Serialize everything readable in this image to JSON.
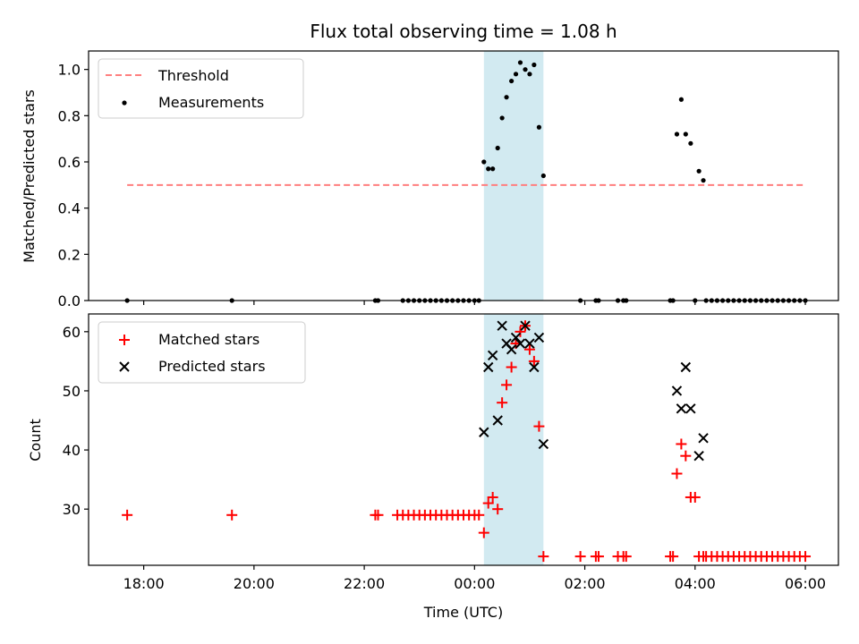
{
  "chart_data": [
    {
      "type": "scatter",
      "title": "Flux total observing time = 1.08 h",
      "xlabel": "",
      "ylabel": "Matched/Predicted stars",
      "ylim": [
        0,
        1.08
      ],
      "yticks": [
        0.0,
        0.2,
        0.4,
        0.6,
        0.8,
        1.0
      ],
      "ytick_labels": [
        "0.0",
        "0.2",
        "0.4",
        "0.6",
        "0.8",
        "1.0"
      ],
      "xlim_hours": [
        -7.0,
        6.6
      ],
      "legend_position": "upper-left",
      "shaded_interval_hours": [
        0.17,
        1.25
      ],
      "threshold": {
        "name": "Threshold",
        "value": 0.5,
        "x_start_hours": -6.3,
        "x_end_hours": 6.0,
        "color": "#ff7f7f"
      },
      "series": [
        {
          "name": "Measurements",
          "color": "#000000",
          "marker": "dot",
          "points": [
            [
              -6.3,
              0
            ],
            [
              -4.4,
              0
            ],
            [
              -1.8,
              0
            ],
            [
              -1.75,
              0
            ],
            [
              -1.3,
              0
            ],
            [
              -1.2,
              0
            ],
            [
              -1.1,
              0
            ],
            [
              -1.0,
              0
            ],
            [
              -0.9,
              0
            ],
            [
              -0.8,
              0
            ],
            [
              -0.7,
              0
            ],
            [
              -0.6,
              0
            ],
            [
              -0.5,
              0
            ],
            [
              -0.4,
              0
            ],
            [
              -0.3,
              0
            ],
            [
              -0.2,
              0
            ],
            [
              -0.1,
              0
            ],
            [
              0.0,
              0
            ],
            [
              0.08,
              0
            ],
            [
              0.17,
              0.6
            ],
            [
              0.25,
              0.57
            ],
            [
              0.33,
              0.57
            ],
            [
              0.42,
              0.66
            ],
            [
              0.5,
              0.79
            ],
            [
              0.58,
              0.88
            ],
            [
              0.67,
              0.95
            ],
            [
              0.75,
              0.98
            ],
            [
              0.83,
              1.03
            ],
            [
              0.92,
              1.0
            ],
            [
              1.0,
              0.98
            ],
            [
              1.08,
              1.02
            ],
            [
              1.17,
              0.75
            ],
            [
              1.25,
              0.54
            ],
            [
              1.92,
              0
            ],
            [
              2.2,
              0
            ],
            [
              2.25,
              0
            ],
            [
              2.6,
              0
            ],
            [
              2.7,
              0
            ],
            [
              2.75,
              0
            ],
            [
              3.55,
              0
            ],
            [
              3.6,
              0
            ],
            [
              3.67,
              0.72
            ],
            [
              3.75,
              0.87
            ],
            [
              3.83,
              0.72
            ],
            [
              3.92,
              0.68
            ],
            [
              4.0,
              0
            ],
            [
              4.07,
              0.56
            ],
            [
              4.15,
              0.52
            ],
            [
              4.2,
              0
            ],
            [
              4.3,
              0
            ],
            [
              4.4,
              0
            ],
            [
              4.5,
              0
            ],
            [
              4.6,
              0
            ],
            [
              4.7,
              0
            ],
            [
              4.8,
              0
            ],
            [
              4.9,
              0
            ],
            [
              5.0,
              0
            ],
            [
              5.1,
              0
            ],
            [
              5.2,
              0
            ],
            [
              5.3,
              0
            ],
            [
              5.4,
              0
            ],
            [
              5.5,
              0
            ],
            [
              5.6,
              0
            ],
            [
              5.7,
              0
            ],
            [
              5.8,
              0
            ],
            [
              5.9,
              0
            ],
            [
              6.0,
              0
            ]
          ]
        }
      ]
    },
    {
      "type": "scatter",
      "title": "",
      "xlabel": "Time (UTC)",
      "ylabel": "Count",
      "ylim": [
        20.5,
        63
      ],
      "yticks": [
        30,
        40,
        50,
        60
      ],
      "ytick_labels": [
        "30",
        "40",
        "50",
        "60"
      ],
      "xlim_hours": [
        -7.0,
        6.6
      ],
      "xticks_hours": [
        -6,
        -4,
        -2,
        0,
        2,
        4,
        6
      ],
      "xtick_labels": [
        "18:00",
        "20:00",
        "22:00",
        "00:00",
        "02:00",
        "04:00",
        "06:00"
      ],
      "legend_position": "upper-left",
      "shaded_interval_hours": [
        0.17,
        1.25
      ],
      "series": [
        {
          "name": "Matched stars",
          "color": "#ff0000",
          "marker": "plus",
          "points": [
            [
              -6.3,
              29
            ],
            [
              -4.4,
              29
            ],
            [
              -1.8,
              29
            ],
            [
              -1.75,
              29
            ],
            [
              -1.4,
              29
            ],
            [
              -1.3,
              29
            ],
            [
              -1.2,
              29
            ],
            [
              -1.1,
              29
            ],
            [
              -1.0,
              29
            ],
            [
              -0.9,
              29
            ],
            [
              -0.8,
              29
            ],
            [
              -0.7,
              29
            ],
            [
              -0.6,
              29
            ],
            [
              -0.5,
              29
            ],
            [
              -0.4,
              29
            ],
            [
              -0.3,
              29
            ],
            [
              -0.2,
              29
            ],
            [
              -0.1,
              29
            ],
            [
              0.0,
              29
            ],
            [
              0.08,
              29
            ],
            [
              0.17,
              26
            ],
            [
              0.25,
              31
            ],
            [
              0.33,
              32
            ],
            [
              0.42,
              30
            ],
            [
              0.5,
              48
            ],
            [
              0.58,
              51
            ],
            [
              0.67,
              54
            ],
            [
              0.75,
              58
            ],
            [
              0.83,
              60
            ],
            [
              0.92,
              61
            ],
            [
              1.0,
              57
            ],
            [
              1.08,
              55
            ],
            [
              1.17,
              44
            ],
            [
              1.25,
              22
            ],
            [
              1.92,
              22
            ],
            [
              2.2,
              22
            ],
            [
              2.25,
              22
            ],
            [
              2.6,
              22
            ],
            [
              2.7,
              22
            ],
            [
              2.75,
              22
            ],
            [
              3.55,
              22
            ],
            [
              3.6,
              22
            ],
            [
              3.67,
              36
            ],
            [
              3.75,
              41
            ],
            [
              3.83,
              39
            ],
            [
              3.92,
              32
            ],
            [
              4.0,
              32
            ],
            [
              4.07,
              22
            ],
            [
              4.15,
              22
            ],
            [
              4.2,
              22
            ],
            [
              4.3,
              22
            ],
            [
              4.4,
              22
            ],
            [
              4.5,
              22
            ],
            [
              4.6,
              22
            ],
            [
              4.7,
              22
            ],
            [
              4.8,
              22
            ],
            [
              4.9,
              22
            ],
            [
              5.0,
              22
            ],
            [
              5.1,
              22
            ],
            [
              5.2,
              22
            ],
            [
              5.3,
              22
            ],
            [
              5.4,
              22
            ],
            [
              5.5,
              22
            ],
            [
              5.6,
              22
            ],
            [
              5.7,
              22
            ],
            [
              5.8,
              22
            ],
            [
              5.9,
              22
            ],
            [
              6.0,
              22
            ]
          ]
        },
        {
          "name": "Predicted stars",
          "color": "#000000",
          "marker": "x",
          "points": [
            [
              0.17,
              43
            ],
            [
              0.25,
              54
            ],
            [
              0.33,
              56
            ],
            [
              0.42,
              45
            ],
            [
              0.5,
              61
            ],
            [
              0.58,
              58
            ],
            [
              0.67,
              57
            ],
            [
              0.75,
              59
            ],
            [
              0.83,
              58
            ],
            [
              0.92,
              61
            ],
            [
              1.0,
              58
            ],
            [
              1.08,
              54
            ],
            [
              1.17,
              59
            ],
            [
              1.25,
              41
            ],
            [
              3.67,
              50
            ],
            [
              3.75,
              47
            ],
            [
              3.83,
              54
            ],
            [
              3.92,
              47
            ],
            [
              4.07,
              39
            ],
            [
              4.15,
              42
            ]
          ]
        }
      ]
    }
  ]
}
